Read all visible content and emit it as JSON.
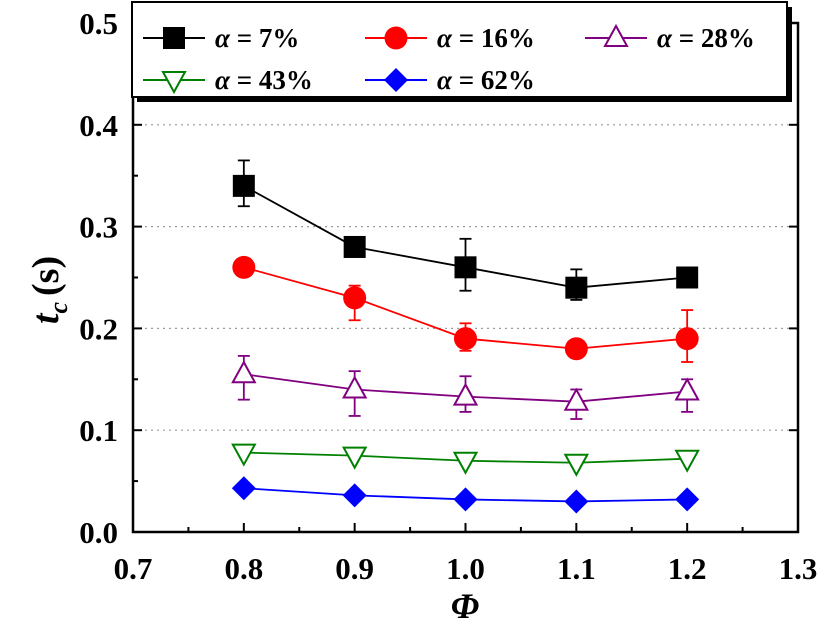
{
  "chart_data": {
    "type": "line",
    "xlabel": "Φ",
    "ylabel": {
      "main": "t",
      "sub": "c",
      "unit": "(s)"
    },
    "xlim": [
      0.7,
      1.3
    ],
    "ylim": [
      0.0,
      0.5
    ],
    "xticks": [
      "0.7",
      "0.8",
      "0.9",
      "1.0",
      "1.1",
      "1.2",
      "1.3"
    ],
    "yticks": [
      "0.0",
      "0.1",
      "0.2",
      "0.3",
      "0.4",
      "0.5"
    ],
    "x": [
      0.8,
      0.9,
      1.0,
      1.1,
      1.2
    ],
    "grid": "dotted horizontal",
    "legend_position": "top",
    "series": [
      {
        "name": "α =   7%",
        "label_prefix": "α =",
        "label_value": "  7%",
        "marker": "square-filled",
        "color": "#000000",
        "values": [
          0.34,
          0.28,
          0.26,
          0.24,
          0.25
        ],
        "errors": [
          [
            0.32,
            0.365
          ],
          null,
          [
            0.237,
            0.288
          ],
          [
            0.228,
            0.258
          ],
          null
        ]
      },
      {
        "name": "α = 16%",
        "label_prefix": "α =",
        "label_value": "16%",
        "marker": "circle-filled",
        "color": "#ff0000",
        "values": [
          0.26,
          0.23,
          0.19,
          0.18,
          0.19
        ],
        "errors": [
          null,
          [
            0.208,
            0.242
          ],
          [
            0.178,
            0.205
          ],
          null,
          [
            0.167,
            0.218
          ]
        ]
      },
      {
        "name": "α = 28%",
        "label_prefix": "α =",
        "label_value": "28%",
        "marker": "triangle-up-open",
        "color": "#800080",
        "values": [
          0.155,
          0.14,
          0.133,
          0.128,
          0.138
        ],
        "errors": [
          [
            0.13,
            0.173
          ],
          [
            0.114,
            0.158
          ],
          [
            0.118,
            0.153
          ],
          [
            0.111,
            0.14
          ],
          [
            0.118,
            0.15
          ]
        ]
      },
      {
        "name": "α = 43%",
        "label_prefix": "α =",
        "label_value": "43%",
        "marker": "triangle-down-open",
        "color": "#008000",
        "values": [
          0.078,
          0.075,
          0.07,
          0.068,
          0.072
        ],
        "errors": [
          null,
          null,
          null,
          null,
          null
        ]
      },
      {
        "name": "α = 62%",
        "label_prefix": "α =",
        "label_value": "62%",
        "marker": "diamond-filled",
        "color": "#0000ff",
        "values": [
          0.043,
          0.036,
          0.032,
          0.03,
          0.032
        ],
        "errors": [
          null,
          null,
          null,
          null,
          null
        ]
      }
    ]
  }
}
